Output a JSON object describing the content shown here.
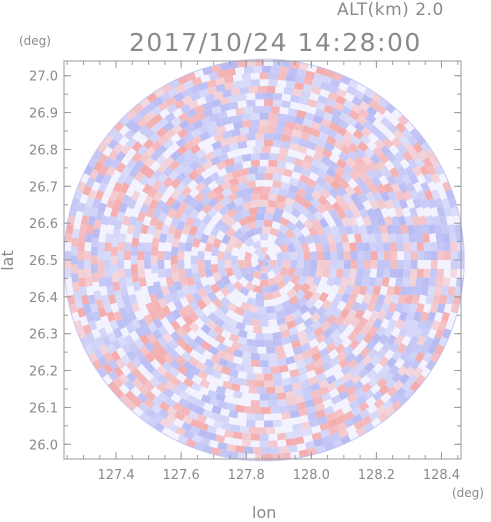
{
  "header": {
    "altitude_label": "ALT(km)",
    "altitude_value": "2.0",
    "datetime": "2017/10/24 14:28:00"
  },
  "colors": {
    "text": "#8a8a8a",
    "frame": "#9a9a9a",
    "positive": "#f4a6a6",
    "negative": "#b3b7f2",
    "neutral": "#f3f3ff"
  },
  "chart_data": {
    "type": "heatmap",
    "title": "",
    "xlabel": "lon",
    "ylabel": "lat",
    "x_unit": "(deg)",
    "y_unit": "(deg)",
    "xlim": [
      127.24,
      128.46
    ],
    "ylim": [
      25.96,
      27.04
    ],
    "x_ticks": [
      127.4,
      127.6,
      127.8,
      128.0,
      128.2,
      128.4
    ],
    "x_tick_labels": [
      "127.4",
      "127.6",
      "127.8",
      "128.0",
      "128.2",
      "128.4"
    ],
    "y_ticks": [
      26.0,
      26.1,
      26.2,
      26.3,
      26.4,
      26.5,
      26.6,
      26.7,
      26.8,
      26.9,
      27.0
    ],
    "y_tick_labels": [
      "26.0",
      "26.1",
      "26.2",
      "26.3",
      "26.4",
      "26.5",
      "26.6",
      "26.7",
      "26.8",
      "26.9",
      "27.0"
    ],
    "radar_center": {
      "lon": 127.855,
      "lat": 26.5
    },
    "radar_radius_deg": {
      "lon": 0.615,
      "lat": 0.545
    },
    "grid": false,
    "legend": "none",
    "colormap": "diverging red-white-blue"
  }
}
